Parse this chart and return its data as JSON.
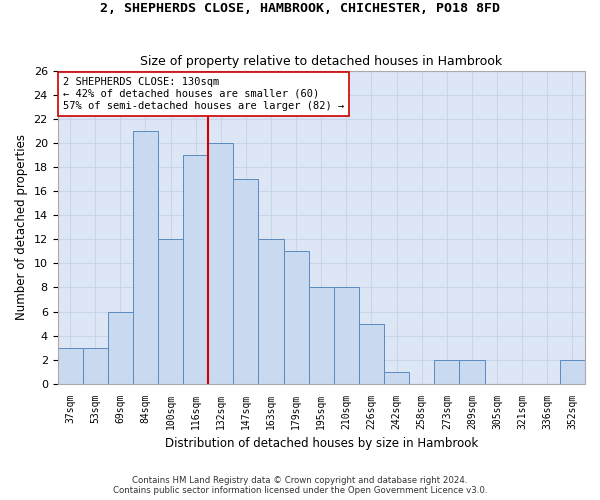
{
  "title1": "2, SHEPHERDS CLOSE, HAMBROOK, CHICHESTER, PO18 8FD",
  "title2": "Size of property relative to detached houses in Hambrook",
  "xlabel": "Distribution of detached houses by size in Hambrook",
  "ylabel": "Number of detached properties",
  "categories": [
    "37sqm",
    "53sqm",
    "69sqm",
    "84sqm",
    "100sqm",
    "116sqm",
    "132sqm",
    "147sqm",
    "163sqm",
    "179sqm",
    "195sqm",
    "210sqm",
    "226sqm",
    "242sqm",
    "258sqm",
    "273sqm",
    "289sqm",
    "305sqm",
    "321sqm",
    "336sqm",
    "352sqm"
  ],
  "values": [
    3,
    3,
    6,
    21,
    12,
    19,
    20,
    17,
    12,
    11,
    8,
    8,
    5,
    1,
    0,
    2,
    2,
    0,
    0,
    0,
    2
  ],
  "bar_color": "#c9d9f0",
  "bar_edge_color": "#5a8abf",
  "reference_line_index": 6,
  "reference_line_color": "#cc0000",
  "annotation_text": "2 SHEPHERDS CLOSE: 130sqm\n← 42% of detached houses are smaller (60)\n57% of semi-detached houses are larger (82) →",
  "annotation_box_color": "#ffffff",
  "annotation_box_edge_color": "#cc0000",
  "ylim": [
    0,
    26
  ],
  "yticks": [
    0,
    2,
    4,
    6,
    8,
    10,
    12,
    14,
    16,
    18,
    20,
    22,
    24,
    26
  ],
  "footnote1": "Contains HM Land Registry data © Crown copyright and database right 2024.",
  "footnote2": "Contains public sector information licensed under the Open Government Licence v3.0.",
  "grid_color": "#c8d4e8",
  "background_color": "#dde6f5"
}
